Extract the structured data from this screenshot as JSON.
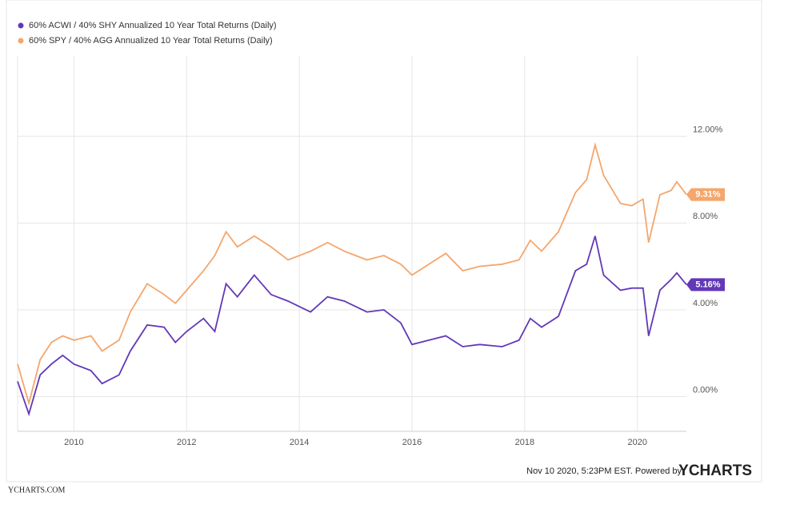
{
  "chart_data": {
    "type": "line",
    "legend": [
      "60% ACWI / 40% SHY Annualized 10 Year Total Returns (Daily)",
      "60% SPY / 40% AGG Annualized 10 Year Total Returns (Daily)"
    ],
    "x": [
      2009.0,
      2009.2,
      2009.4,
      2009.6,
      2009.8,
      2010.0,
      2010.3,
      2010.5,
      2010.8,
      2011.0,
      2011.3,
      2011.6,
      2011.8,
      2012.0,
      2012.3,
      2012.5,
      2012.7,
      2012.9,
      2013.2,
      2013.5,
      2013.8,
      2014.2,
      2014.5,
      2014.8,
      2015.2,
      2015.5,
      2015.8,
      2016.0,
      2016.3,
      2016.6,
      2016.9,
      2017.2,
      2017.6,
      2017.9,
      2018.1,
      2018.3,
      2018.6,
      2018.9,
      2019.1,
      2019.25,
      2019.4,
      2019.7,
      2019.9,
      2020.1,
      2020.2,
      2020.4,
      2020.6,
      2020.7,
      2020.87
    ],
    "series": [
      {
        "name": "60% ACWI / 40% SHY Annualized 10 Year Total Returns (Daily)",
        "color": "#6238b8",
        "values": [
          0.7,
          -0.8,
          1.0,
          1.5,
          1.9,
          1.5,
          1.2,
          0.6,
          1.0,
          2.1,
          3.3,
          3.2,
          2.5,
          3.0,
          3.6,
          3.0,
          5.2,
          4.6,
          5.6,
          4.7,
          4.4,
          3.9,
          4.6,
          4.4,
          3.9,
          4.0,
          3.4,
          2.4,
          2.6,
          2.8,
          2.3,
          2.4,
          2.3,
          2.6,
          3.6,
          3.2,
          3.7,
          5.8,
          6.1,
          7.4,
          5.6,
          4.9,
          5.0,
          5.0,
          2.8,
          4.9,
          5.4,
          5.7,
          5.16
        ],
        "end_label": "5.16%"
      },
      {
        "name": "60% SPY / 40% AGG Annualized 10 Year Total Returns (Daily)",
        "color": "#f4a66c",
        "values": [
          1.5,
          -0.3,
          1.7,
          2.5,
          2.8,
          2.6,
          2.8,
          2.1,
          2.6,
          3.9,
          5.2,
          4.7,
          4.3,
          4.9,
          5.8,
          6.5,
          7.6,
          6.9,
          7.4,
          6.9,
          6.3,
          6.7,
          7.1,
          6.7,
          6.3,
          6.5,
          6.1,
          5.6,
          6.1,
          6.6,
          5.8,
          6.0,
          6.1,
          6.3,
          7.2,
          6.7,
          7.6,
          9.4,
          10.0,
          11.6,
          10.2,
          8.9,
          8.8,
          9.1,
          7.1,
          9.3,
          9.5,
          9.9,
          9.31
        ],
        "end_label": "9.31%"
      }
    ],
    "xlim": [
      2009.0,
      2020.87
    ],
    "xticks": [
      2010,
      2012,
      2014,
      2016,
      2018,
      2020
    ],
    "ylim": [
      -1.6,
      15.7
    ],
    "yticks": [
      {
        "value": 0,
        "label": "0.00%"
      },
      {
        "value": 4,
        "label": "4.00%"
      },
      {
        "value": 8,
        "label": "8.00%"
      },
      {
        "value": 12,
        "label": "12.00%"
      }
    ],
    "grid": true,
    "footer": "Nov 10 2020, 5:23PM EST. Powered by",
    "brand": "YCHARTS",
    "source": "YCHARTS.COM"
  }
}
